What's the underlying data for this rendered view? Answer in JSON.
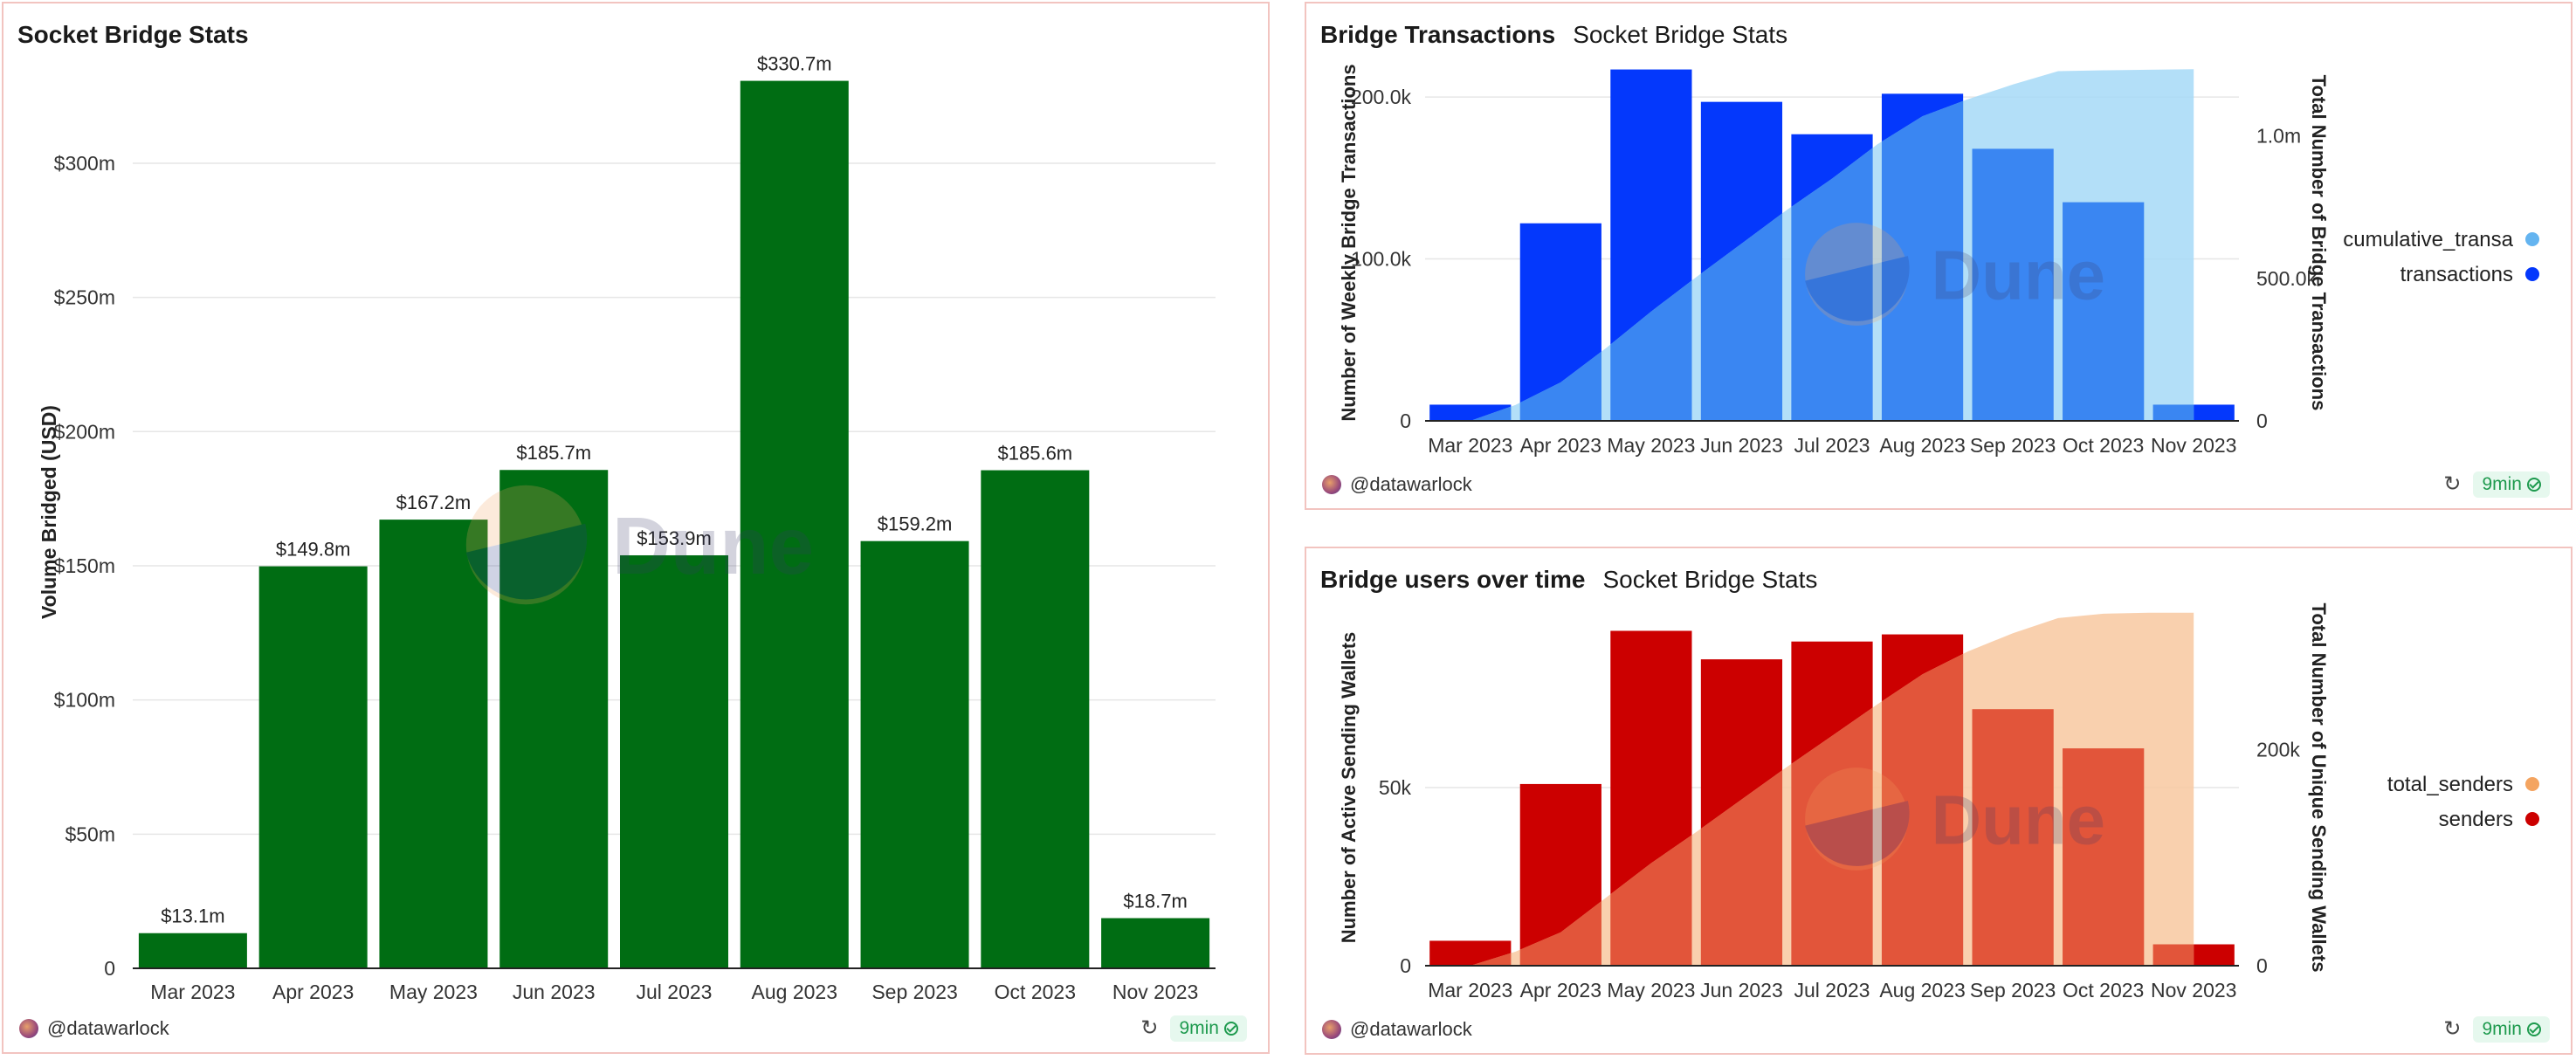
{
  "panels": [
    {
      "title": "Socket Bridge Stats",
      "subtitle": "",
      "author": "@datawarlock",
      "age": "9min"
    },
    {
      "title": "Bridge Transactions",
      "subtitle": "Socket Bridge Stats",
      "author": "@datawarlock",
      "age": "9min"
    },
    {
      "title": "Bridge users over time",
      "subtitle": "Socket Bridge Stats",
      "author": "@datawarlock",
      "age": "9min"
    }
  ],
  "watermark": "Dune",
  "colors": {
    "volume_bar": "#006d13",
    "transactions_bar": "#0438fc",
    "cumulative_area": "#a6d9f7",
    "transactions_bar_overlap": "#3a86f2",
    "senders_bar": "#cc0000",
    "total_senders_area": "#f8c8a0",
    "senders_bar_overlap": "#e2553a",
    "total_senders_dot": "#f4a460",
    "cumulative_dot": "#64b4f0",
    "axis_text": "#333333",
    "grid": "#e6e6e6"
  },
  "chart_data": [
    {
      "type": "bar",
      "title": "Socket Bridge Stats",
      "categories": [
        "Mar 2023",
        "Apr 2023",
        "May 2023",
        "Jun 2023",
        "Jul 2023",
        "Aug 2023",
        "Sep 2023",
        "Oct 2023",
        "Nov 2023"
      ],
      "values": [
        13.1,
        149.8,
        167.2,
        185.7,
        153.9,
        330.7,
        159.2,
        185.6,
        18.7
      ],
      "value_labels": [
        "$13.1m",
        "$149.8m",
        "$167.2m",
        "$185.7m",
        "$153.9m",
        "$330.7m",
        "$159.2m",
        "$185.6m",
        "$18.7m"
      ],
      "ylabel": "Volume Bridged (USD)",
      "ylim": [
        0,
        340
      ],
      "yticks": [
        0,
        50,
        100,
        150,
        200,
        250,
        300
      ],
      "ytick_labels": [
        "0",
        "$50m",
        "$100m",
        "$150m",
        "$200m",
        "$250m",
        "$300m"
      ],
      "grid": true
    },
    {
      "type": "bar",
      "title": "Bridge Transactions",
      "categories": [
        "Mar 2023",
        "Apr 2023",
        "May 2023",
        "Jun 2023",
        "Jul 2023",
        "Aug 2023",
        "Sep 2023",
        "Oct 2023",
        "Nov 2023"
      ],
      "series": [
        {
          "name": "transactions",
          "type": "bar",
          "axis": "left",
          "values": [
            10000,
            122000,
            217000,
            197000,
            177000,
            202000,
            168000,
            135000,
            10000
          ]
        },
        {
          "name": "cumulative_transa",
          "type": "area",
          "axis": "right",
          "x": [
            0.5,
            1,
            1.5,
            2,
            2.5,
            3,
            3.5,
            4,
            4.5,
            5,
            5.5,
            6,
            6.5,
            7,
            7.5,
            8,
            8.5
          ],
          "values": [
            0,
            56000,
            135000,
            255000,
            384000,
            505000,
            622000,
            740000,
            850000,
            970000,
            1069000,
            1128000,
            1180000,
            1227000,
            1230000,
            1232000,
            1234000
          ]
        }
      ],
      "ylabel": "Number of Weekly Bridge Transactions",
      "y2label": "Total Number of Bridge Transactions",
      "ylim": [
        0,
        220000
      ],
      "yticks": [
        0,
        100000,
        200000
      ],
      "ytick_labels": [
        "0",
        "100.0k",
        "200.0k"
      ],
      "y2lim": [
        0,
        1250000
      ],
      "y2ticks": [
        0,
        500000,
        1000000
      ],
      "y2tick_labels": [
        "0",
        "500.0k",
        "1.0m"
      ],
      "legend": [
        "cumulative_transa",
        "transactions"
      ],
      "legend_position": "right"
    },
    {
      "type": "bar",
      "title": "Bridge users over time",
      "categories": [
        "Mar 2023",
        "Apr 2023",
        "May 2023",
        "Jun 2023",
        "Jul 2023",
        "Aug 2023",
        "Sep 2023",
        "Oct 2023",
        "Nov 2023"
      ],
      "series": [
        {
          "name": "senders",
          "type": "bar",
          "axis": "left",
          "values": [
            7000,
            51000,
            94000,
            86000,
            91000,
            93000,
            72000,
            61000,
            6000
          ]
        },
        {
          "name": "total_senders",
          "type": "area",
          "axis": "right",
          "x": [
            0.5,
            1,
            1.5,
            2,
            2.5,
            3,
            3.5,
            4,
            4.5,
            5,
            5.5,
            6,
            6.5,
            7,
            7.5,
            8,
            8.5
          ],
          "values": [
            0,
            13000,
            31000,
            63000,
            95000,
            124000,
            154000,
            184000,
            213000,
            242000,
            270000,
            291000,
            308000,
            322000,
            326000,
            327000,
            327000
          ]
        }
      ],
      "ylabel": "Number of Active Sending Wallets",
      "y2label": "Total Number of Unique Sending Wallets",
      "ylim": [
        0,
        100000
      ],
      "yticks": [
        0,
        50000
      ],
      "ytick_labels": [
        "0",
        "50k"
      ],
      "y2lim": [
        0,
        330000
      ],
      "y2ticks": [
        0,
        200000
      ],
      "y2tick_labels": [
        "0",
        "200k"
      ],
      "legend": [
        "total_senders",
        "senders"
      ],
      "legend_position": "right"
    }
  ]
}
